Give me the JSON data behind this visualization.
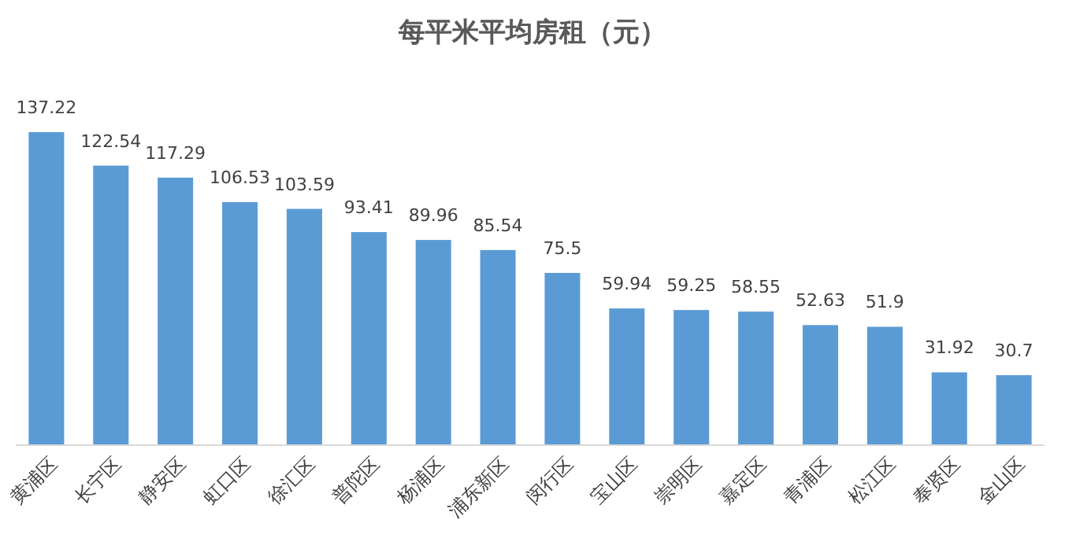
{
  "chart_data": {
    "type": "bar",
    "title": "每平米平均房租（元）",
    "categories": [
      "黄浦区",
      "长宁区",
      "静安区",
      "虹口区",
      "徐汇区",
      "普陀区",
      "杨浦区",
      "浦东新区",
      "闵行区",
      "宝山区",
      "崇明区",
      "嘉定区",
      "青浦区",
      "松江区",
      "奉贤区",
      "金山区"
    ],
    "values": [
      137.22,
      122.54,
      117.29,
      106.53,
      103.59,
      93.41,
      89.96,
      85.54,
      75.5,
      59.94,
      59.25,
      58.55,
      52.63,
      51.9,
      31.92,
      30.7
    ],
    "color": "#5b9bd5",
    "data_labels": true,
    "grid": false
  }
}
